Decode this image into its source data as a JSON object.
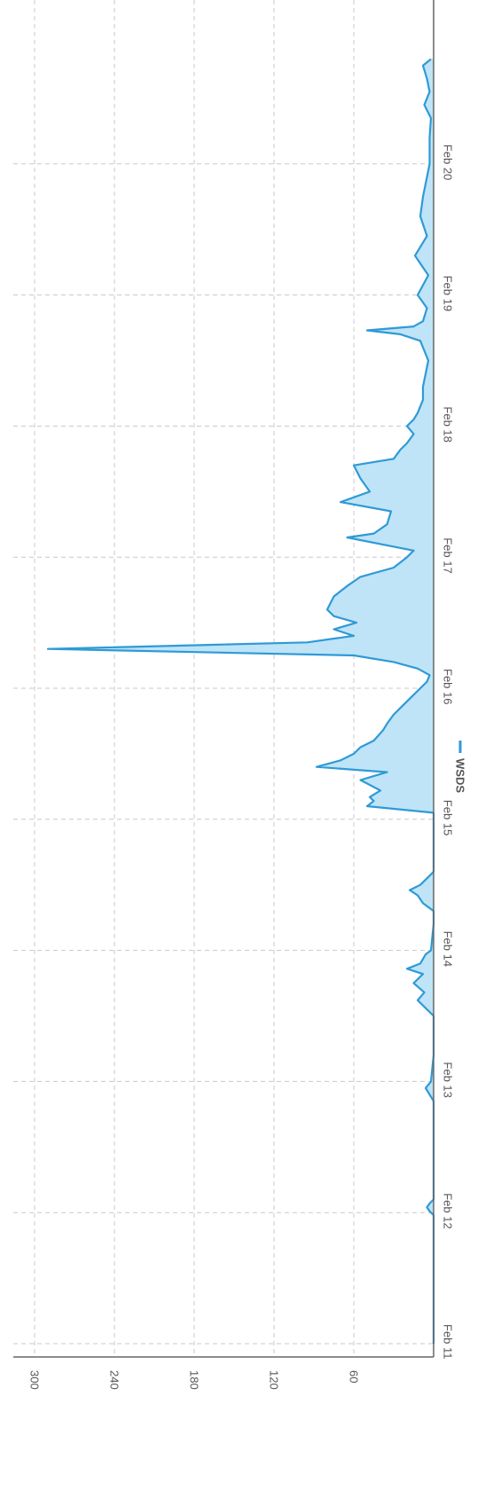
{
  "chart_data": {
    "type": "area",
    "orientation": "rotated-90-clockwise",
    "title": "",
    "xlabel": "",
    "ylabel": "",
    "x_ticks": [
      "Feb 11",
      "Feb 12",
      "Feb 13",
      "Feb 14",
      "Feb 15",
      "Feb 16",
      "Feb 17",
      "Feb 18",
      "Feb 19",
      "Feb 20"
    ],
    "y_ticks": [
      60,
      120,
      180,
      240,
      300
    ],
    "ylim": [
      0,
      300
    ],
    "xlim": [
      0,
      9.8
    ],
    "grid": true,
    "legend": {
      "position": "bottom",
      "entries": [
        "WSDS"
      ]
    },
    "series": [
      {
        "name": "WSDS",
        "color": "#2f9ad6",
        "fill": "#bfe4f7",
        "x": [
          0,
          0.5,
          0.98,
          1.01,
          1.04,
          1.07,
          1.1,
          1.5,
          1.85,
          1.9,
          1.95,
          2.0,
          2.2,
          2.4,
          2.5,
          2.55,
          2.62,
          2.68,
          2.75,
          2.82,
          2.86,
          2.9,
          2.97,
          3.0,
          3.2,
          3.3,
          3.36,
          3.42,
          3.46,
          3.5,
          3.55,
          3.6,
          3.65,
          3.7,
          3.8,
          3.92,
          4.05,
          4.1,
          4.14,
          4.17,
          4.22,
          4.3,
          4.36,
          4.4,
          4.45,
          4.5,
          4.55,
          4.6,
          4.68,
          4.73,
          4.8,
          4.85,
          4.92,
          5.0,
          5.05,
          5.1,
          5.15,
          5.2,
          5.25,
          5.3,
          5.35,
          5.4,
          5.45,
          5.5,
          5.55,
          5.6,
          5.7,
          5.78,
          5.85,
          5.92,
          6.0,
          6.05,
          6.1,
          6.15,
          6.18,
          6.25,
          6.35,
          6.42,
          6.5,
          6.6,
          6.7,
          6.75,
          6.82,
          6.87,
          6.94,
          7.0,
          7.05,
          7.1,
          7.15,
          7.2,
          7.3,
          7.4,
          7.5,
          7.65,
          7.7,
          7.73,
          7.76,
          7.8,
          7.9,
          8.0,
          8.15,
          8.3,
          8.45,
          8.6,
          8.75,
          8.9,
          9.0,
          9.2,
          9.35,
          9.45,
          9.55,
          9.65,
          9.75,
          9.8
        ],
        "values": [
          0,
          0,
          0,
          3,
          5,
          3,
          0,
          0,
          0,
          3,
          6,
          2,
          0,
          0,
          0,
          5,
          12,
          7,
          15,
          8,
          20,
          10,
          6,
          2,
          0,
          0,
          8,
          12,
          18,
          10,
          5,
          0,
          0,
          0,
          0,
          0,
          0,
          50,
          45,
          48,
          40,
          55,
          35,
          88,
          70,
          60,
          55,
          45,
          38,
          35,
          30,
          25,
          18,
          10,
          5,
          3,
          12,
          30,
          60,
          290,
          95,
          60,
          75,
          58,
          75,
          80,
          75,
          65,
          55,
          30,
          20,
          15,
          40,
          65,
          45,
          35,
          32,
          70,
          48,
          55,
          60,
          30,
          25,
          20,
          15,
          20,
          15,
          12,
          10,
          8,
          8,
          6,
          4,
          10,
          25,
          50,
          15,
          8,
          5,
          12,
          4,
          14,
          5,
          10,
          8,
          5,
          3,
          3,
          2,
          7,
          3,
          5,
          8,
          2
        ]
      }
    ]
  }
}
